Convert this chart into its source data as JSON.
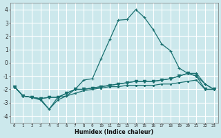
{
  "x": [
    0,
    1,
    2,
    3,
    4,
    5,
    6,
    7,
    8,
    9,
    10,
    11,
    12,
    13,
    14,
    15,
    16,
    17,
    18,
    19,
    20,
    21,
    22,
    23
  ],
  "line1": [
    -1.8,
    -2.5,
    -2.6,
    -2.7,
    -3.5,
    -2.6,
    -2.5,
    -2.0,
    -1.3,
    -1.2,
    0.3,
    1.75,
    3.2,
    3.25,
    4.0,
    3.4,
    2.5,
    1.4,
    0.9,
    -0.4,
    -0.8,
    -1.0,
    -1.6,
    -2.0
  ],
  "line2": [
    -1.8,
    -2.5,
    -2.6,
    -2.7,
    -2.6,
    -2.6,
    -2.3,
    -2.0,
    -2.0,
    -1.9,
    -1.8,
    -1.7,
    -1.6,
    -1.5,
    -1.4,
    -1.4,
    -1.4,
    -1.3,
    -1.2,
    -1.0,
    -0.8,
    -0.8,
    -1.6,
    -2.0
  ],
  "line3": [
    -1.8,
    -2.5,
    -2.6,
    -2.7,
    -2.6,
    -2.6,
    -2.3,
    -2.0,
    -2.0,
    -1.9,
    -1.8,
    -1.7,
    -1.6,
    -1.5,
    -1.4,
    -1.4,
    -1.4,
    -1.3,
    -1.2,
    -1.0,
    -0.8,
    -1.0,
    -2.0,
    -2.0
  ],
  "line4": [
    -1.8,
    -2.5,
    -2.6,
    -2.8,
    -3.5,
    -2.8,
    -2.5,
    -2.3,
    -2.1,
    -2.0,
    -1.9,
    -1.8,
    -1.8,
    -1.7,
    -1.7,
    -1.7,
    -1.7,
    -1.6,
    -1.6,
    -1.5,
    -1.4,
    -1.3,
    -2.0,
    -2.0
  ],
  "bg_color": "#cce8ec",
  "grid_color": "#ffffff",
  "line_color": "#1a7070",
  "xlabel": "Humidex (Indice chaleur)",
  "ylim": [
    -4.5,
    4.5
  ],
  "xlim": [
    -0.5,
    23.5
  ],
  "yticks": [
    -4,
    -3,
    -2,
    -1,
    0,
    1,
    2,
    3,
    4
  ],
  "xticks": [
    0,
    1,
    2,
    3,
    4,
    5,
    6,
    7,
    8,
    9,
    10,
    11,
    12,
    13,
    14,
    15,
    16,
    17,
    18,
    19,
    20,
    21,
    22,
    23
  ]
}
